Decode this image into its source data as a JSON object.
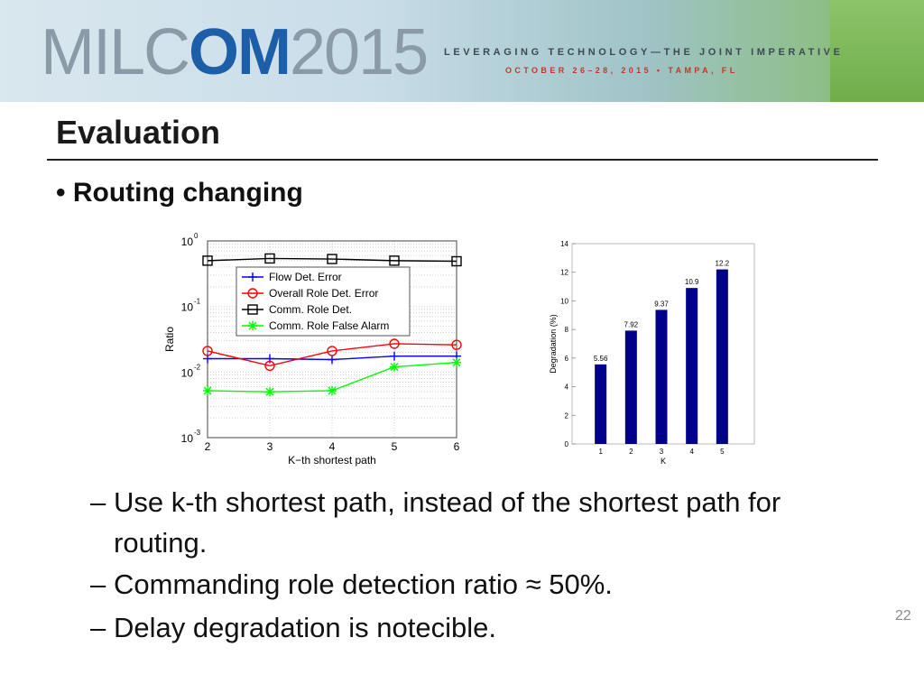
{
  "header": {
    "logo_left": "MILC",
    "logo_mid": "OM",
    "logo_year": "2015",
    "tagline": "LEVERAGING TECHNOLOGY—THE JOINT IMPERATIVE",
    "dates": "OCTOBER 26–28, 2015 • TAMPA, FL"
  },
  "slide": {
    "title": "Evaluation",
    "bullet": "Routing changing",
    "subbullets": [
      "Use k-th shortest path, instead of the shortest path for",
      "routing.",
      "Commanding role detection ratio ≈ 50%.",
      "Delay degradation is notecible."
    ],
    "page_number": "22"
  },
  "chart_data": [
    {
      "type": "line",
      "xlabel": "K−th shortest path",
      "ylabel": "Ratio",
      "yscale": "log",
      "ylim": [
        0.001,
        1
      ],
      "xlim": [
        2,
        6
      ],
      "x": [
        2,
        3,
        4,
        5,
        6
      ],
      "y_tick_labels": [
        "10^0",
        "10^-1",
        "10^-2",
        "10^-3"
      ],
      "legend_position": "upper-center",
      "series": [
        {
          "name": "Flow Det. Error",
          "color": "#0000ff",
          "marker": "plus",
          "values": [
            0.016,
            0.016,
            0.0155,
            0.0175,
            0.0175
          ]
        },
        {
          "name": "Overall Role Det. Error",
          "color": "#ff0000",
          "marker": "circle",
          "values": [
            0.021,
            0.0125,
            0.021,
            0.027,
            0.026
          ]
        },
        {
          "name": "Comm. Role Det.",
          "color": "#000000",
          "marker": "square",
          "values": [
            0.5,
            0.54,
            0.53,
            0.5,
            0.49
          ]
        },
        {
          "name": "Comm. Role False Alarm",
          "color": "#00ff00",
          "marker": "star",
          "values": [
            0.0052,
            0.005,
            0.0052,
            0.012,
            0.014
          ]
        }
      ]
    },
    {
      "type": "bar",
      "xlabel": "K",
      "ylabel": "Degradation (%)",
      "categories": [
        "1",
        "2",
        "3",
        "4",
        "5"
      ],
      "values": [
        5.56,
        7.92,
        9.37,
        10.9,
        12.2
      ],
      "data_labels": [
        "5.56",
        "7.92",
        "9.37",
        "10.9",
        "12.2"
      ],
      "ylim": [
        0,
        14
      ],
      "yticks": [
        0,
        2,
        4,
        6,
        8,
        10,
        12,
        14
      ],
      "bar_color": "#00008b"
    }
  ]
}
